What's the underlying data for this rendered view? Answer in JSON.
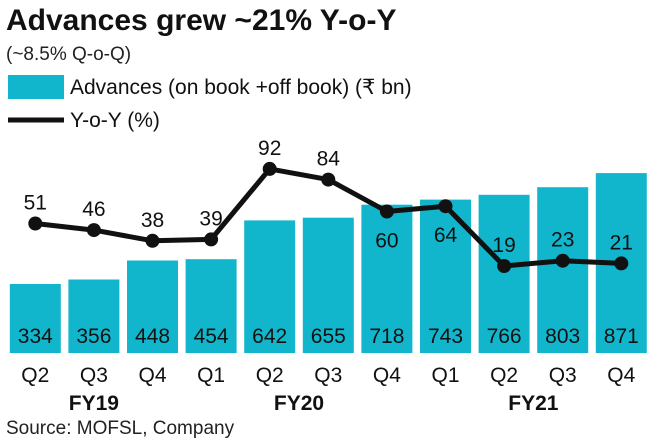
{
  "chart_data": {
    "type": "bar",
    "title": "Advances grew ~21% Y-o-Y",
    "subtitle": "(~8.5% Q-o-Q)",
    "source": "Source: MOFSL, Company",
    "categories": [
      "Q2",
      "Q3",
      "Q4",
      "Q1",
      "Q2",
      "Q3",
      "Q4",
      "Q1",
      "Q2",
      "Q3",
      "Q4"
    ],
    "fiscal_years": [
      {
        "label": "FY19",
        "start": 0,
        "end": 2
      },
      {
        "label": "FY20",
        "start": 3,
        "end": 6
      },
      {
        "label": "FY21",
        "start": 7,
        "end": 10
      }
    ],
    "series": [
      {
        "name": "Advances (on book +off book) (₹ bn)",
        "type": "bar",
        "color": "#12b6cc",
        "values": [
          334,
          356,
          448,
          454,
          642,
          655,
          718,
          743,
          766,
          803,
          871
        ]
      },
      {
        "name": "Y-o-Y (%)",
        "type": "line",
        "color": "#111111",
        "values": [
          51,
          46,
          38,
          39,
          92,
          84,
          60,
          64,
          19,
          23,
          21
        ]
      }
    ],
    "legend_placement": "top-left",
    "grid": false
  }
}
